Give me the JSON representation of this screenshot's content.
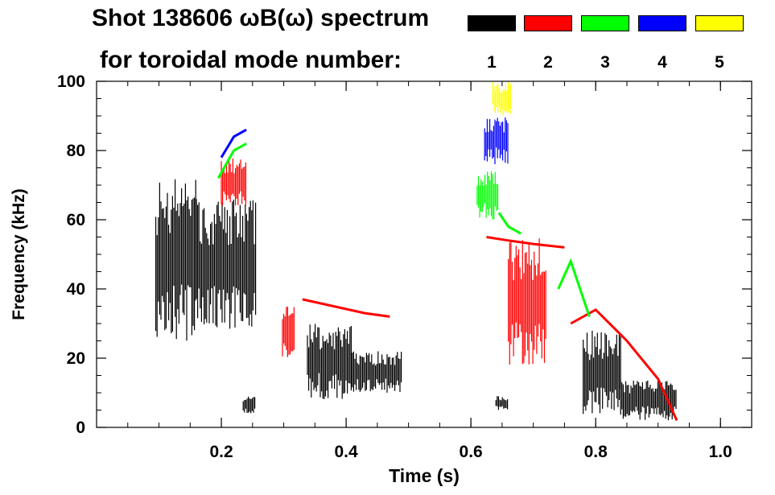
{
  "title": {
    "line1": "Shot 138606 ωB(ω) spectrum",
    "line2": "for toroidal mode number:"
  },
  "legend": [
    {
      "label": "1",
      "color": "#000000"
    },
    {
      "label": "2",
      "color": "#ff0000"
    },
    {
      "label": "3",
      "color": "#00ff00"
    },
    {
      "label": "4",
      "color": "#0000ff"
    },
    {
      "label": "5",
      "color": "#ffff00"
    }
  ],
  "chart_data": {
    "type": "heatmap",
    "title": "Shot 138606 ωB(ω) spectrum",
    "xlabel": "Time (s)",
    "ylabel": "Frequency (kHz)",
    "xlim": [
      0.0,
      1.05
    ],
    "ylim": [
      0,
      100
    ],
    "xticks": [
      0.2,
      0.4,
      0.6,
      0.8,
      1.0
    ],
    "xtick_labels": [
      "0.2",
      "0.4",
      "0.6",
      "0.8",
      "1.0"
    ],
    "yticks": [
      0,
      20,
      40,
      60,
      80,
      100
    ],
    "ytick_labels": [
      "0",
      "20",
      "40",
      "60",
      "80",
      "100"
    ],
    "series": [
      {
        "name": "n=1",
        "color": "#000000",
        "regions": [
          {
            "t": [
              0.095,
              0.16
            ],
            "f": [
              25,
              72
            ]
          },
          {
            "t": [
              0.16,
              0.255
            ],
            "f": [
              28,
              66
            ]
          },
          {
            "t": [
              0.235,
              0.255
            ],
            "f": [
              4,
              9
            ]
          },
          {
            "t": [
              0.338,
              0.41
            ],
            "f": [
              8,
              30
            ]
          },
          {
            "t": [
              0.41,
              0.49
            ],
            "f": [
              10,
              22
            ]
          },
          {
            "t": [
              0.64,
              0.66
            ],
            "f": [
              5,
              9
            ]
          },
          {
            "t": [
              0.78,
              0.84
            ],
            "f": [
              3,
              28
            ]
          },
          {
            "t": [
              0.84,
              0.93
            ],
            "f": [
              2,
              14
            ]
          }
        ],
        "lines": []
      },
      {
        "name": "n=2",
        "color": "#ff0000",
        "regions": [
          {
            "t": [
              0.2,
              0.24
            ],
            "f": [
              64,
              78
            ]
          },
          {
            "t": [
              0.298,
              0.318
            ],
            "f": [
              20,
              36
            ]
          },
          {
            "t": [
              0.66,
              0.72
            ],
            "f": [
              18,
              55
            ]
          }
        ],
        "lines": [
          {
            "t": [
              0.625,
              0.66,
              0.7,
              0.75
            ],
            "f": [
              55,
              54,
              53,
              52
            ]
          },
          {
            "t": [
              0.33,
              0.38,
              0.43,
              0.47
            ],
            "f": [
              37,
              35,
              33,
              32
            ]
          },
          {
            "t": [
              0.76,
              0.8,
              0.85,
              0.9,
              0.93
            ],
            "f": [
              30,
              34,
              25,
              14,
              2
            ]
          }
        ]
      },
      {
        "name": "n=3",
        "color": "#00ff00",
        "regions": [
          {
            "t": [
              0.61,
              0.645
            ],
            "f": [
              60,
              74
            ]
          }
        ],
        "lines": [
          {
            "t": [
              0.195,
              0.22,
              0.24
            ],
            "f": [
              72,
              80,
              82
            ]
          },
          {
            "t": [
              0.645,
              0.66,
              0.68
            ],
            "f": [
              62,
              58,
              56
            ]
          },
          {
            "t": [
              0.74,
              0.76,
              0.79
            ],
            "f": [
              40,
              48,
              32
            ]
          }
        ]
      },
      {
        "name": "n=4",
        "color": "#0000ff",
        "regions": [
          {
            "t": [
              0.622,
              0.66
            ],
            "f": [
              76,
              90
            ]
          }
        ],
        "lines": [
          {
            "t": [
              0.2,
              0.22,
              0.24
            ],
            "f": [
              78,
              84,
              86
            ]
          }
        ]
      },
      {
        "name": "n=5",
        "color": "#ffff00",
        "regions": [
          {
            "t": [
              0.635,
              0.665
            ],
            "f": [
              90,
              100
            ]
          }
        ],
        "lines": []
      }
    ]
  }
}
